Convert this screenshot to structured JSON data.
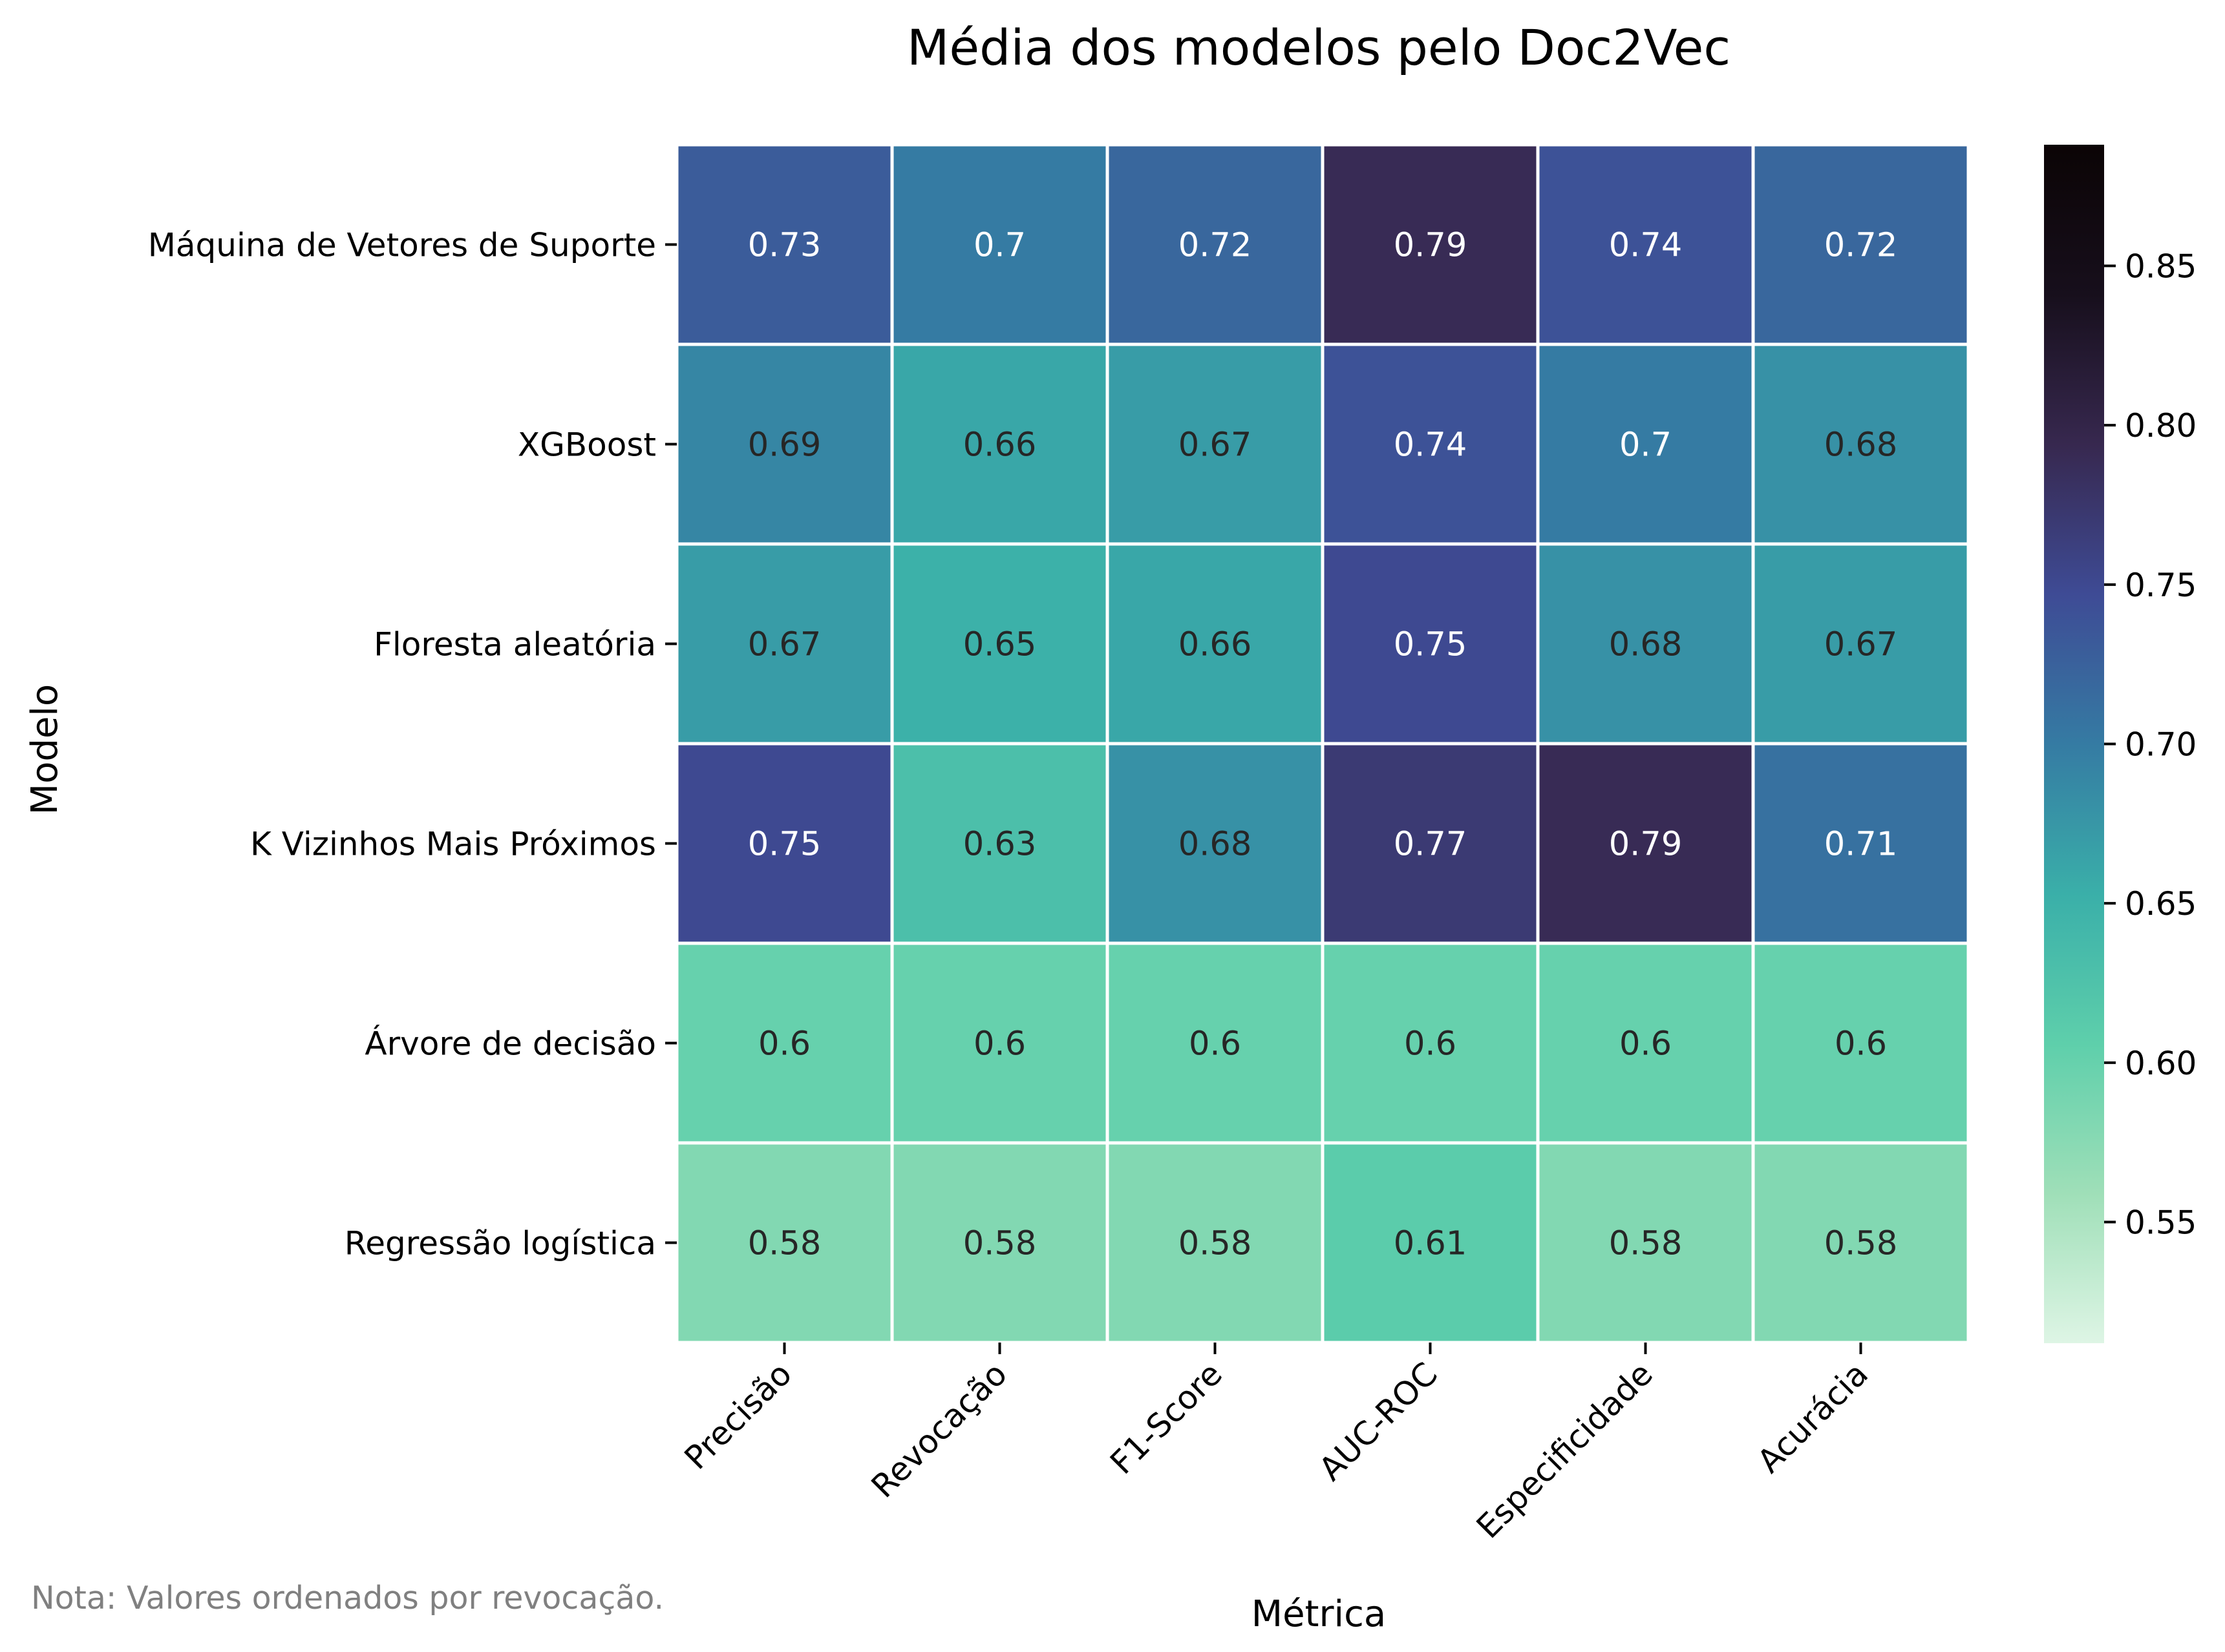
{
  "chart_data": {
    "type": "heatmap",
    "title": "Média dos modelos pelo Doc2Vec",
    "xlabel": "Métrica",
    "ylabel": "Modelo",
    "note": "Nota: Valores ordenados por revocação.",
    "x_categories": [
      "Precisão",
      "Revocação",
      "F1-Score",
      "AUC-ROC",
      "Especificidade",
      "Acurácia"
    ],
    "y_categories": [
      "Máquina de Vetores de Suporte",
      "XGBoost",
      "Floresta aleatória",
      "K Vizinhos Mais Próximos",
      "Árvore de decisão",
      "Regressão logística"
    ],
    "values": [
      [
        0.73,
        0.7,
        0.72,
        0.79,
        0.74,
        0.72
      ],
      [
        0.69,
        0.66,
        0.67,
        0.74,
        0.7,
        0.68
      ],
      [
        0.67,
        0.65,
        0.66,
        0.75,
        0.68,
        0.67
      ],
      [
        0.75,
        0.63,
        0.68,
        0.77,
        0.79,
        0.71
      ],
      [
        0.6,
        0.6,
        0.6,
        0.6,
        0.6,
        0.6
      ],
      [
        0.58,
        0.58,
        0.58,
        0.61,
        0.58,
        0.58
      ]
    ],
    "labels": [
      [
        "0.73",
        "0.7",
        "0.72",
        "0.79",
        "0.74",
        "0.72"
      ],
      [
        "0.69",
        "0.66",
        "0.67",
        "0.74",
        "0.7",
        "0.68"
      ],
      [
        "0.67",
        "0.65",
        "0.66",
        "0.75",
        "0.68",
        "0.67"
      ],
      [
        "0.75",
        "0.63",
        "0.68",
        "0.77",
        "0.79",
        "0.71"
      ],
      [
        "0.6",
        "0.6",
        "0.6",
        "0.6",
        "0.6",
        "0.6"
      ],
      [
        "0.58",
        "0.58",
        "0.58",
        "0.61",
        "0.58",
        "0.58"
      ]
    ],
    "colorbar": {
      "vmin": 0.512,
      "vmax": 0.888,
      "ticks": [
        0.55,
        0.6,
        0.65,
        0.7,
        0.75,
        0.8,
        0.85
      ],
      "tick_labels": [
        "0.55",
        "0.60",
        "0.65",
        "0.70",
        "0.75",
        "0.80",
        "0.85"
      ],
      "colormap": "mako_r",
      "stops": [
        "#def5e5",
        "#9fdfb8",
        "#5ecfab",
        "#3aafa9",
        "#357ba3",
        "#3e4b95",
        "#37284f",
        "#170f1c",
        "#0b0405"
      ]
    },
    "grid_line_color": "#ffffff"
  }
}
